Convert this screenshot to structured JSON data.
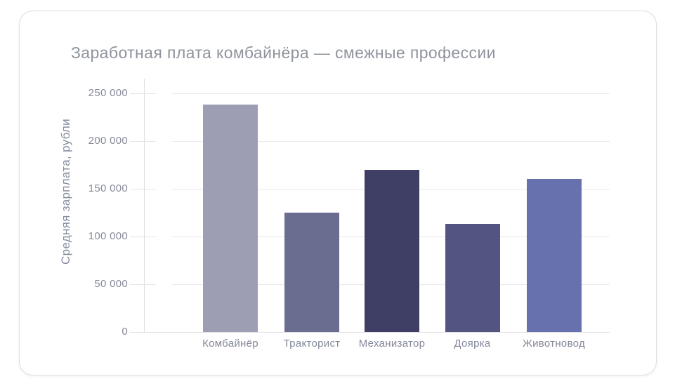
{
  "card": {
    "title": "Заработная плата комбайнёра — смежные профессии"
  },
  "chart_data": {
    "type": "bar",
    "title": "Заработная плата комбайнёра — смежные профессии",
    "xlabel": "",
    "ylabel": "Средняя зарплата, рубли",
    "categories": [
      "Комбайнёр",
      "Тракторист",
      "Механизатор",
      "Доярка",
      "Животновод"
    ],
    "values": [
      238000,
      125000,
      170000,
      113000,
      160000
    ],
    "bar_colors": [
      "#9d9eb4",
      "#6a6c90",
      "#3f3f65",
      "#535481",
      "#6771ae"
    ],
    "ylim": [
      0,
      250000
    ],
    "yticks": [
      0,
      50000,
      100000,
      150000,
      200000,
      250000
    ],
    "ytick_labels": [
      "0",
      "50 000",
      "100 000",
      "150 000",
      "200 000",
      "250 000"
    ],
    "grid": true,
    "legend": false,
    "background": "#ffffff"
  }
}
